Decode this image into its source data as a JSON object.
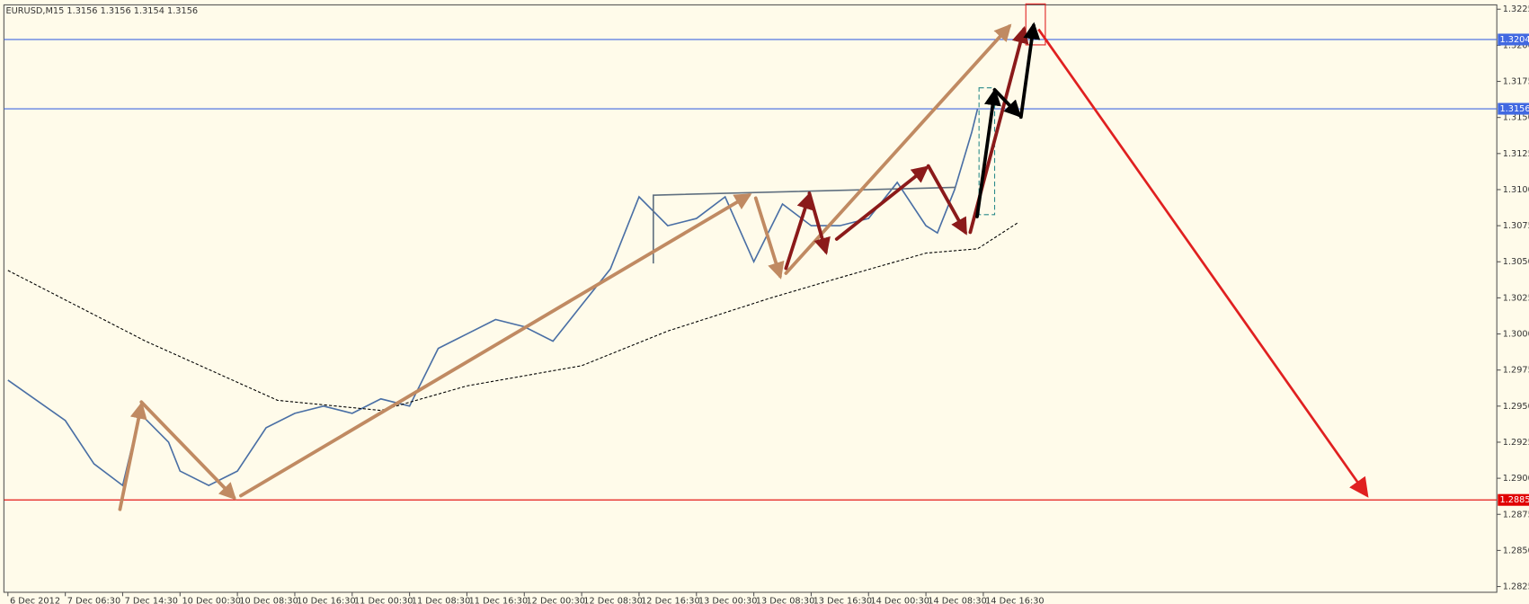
{
  "chart_data": {
    "type": "line",
    "title": "EURUSD,M15  1.3156 1.3156 1.3154 1.3156",
    "categories": [
      "6 Dec 2012",
      "7 Dec 06:30",
      "7 Dec 14:30",
      "10 Dec 00:30",
      "10 Dec 08:30",
      "10 Dec 16:30",
      "11 Dec 00:30",
      "11 Dec 08:30",
      "11 Dec 16:30",
      "12 Dec 00:30",
      "12 Dec 08:30",
      "12 Dec 16:30",
      "13 Dec 00:30",
      "13 Dec 08:30",
      "13 Dec 16:30",
      "14 Dec 00:30",
      "14 Dec 08:30",
      "14 Dec 16:30"
    ],
    "xlim": [
      -0.07,
      25.95
    ],
    "ylim": [
      1.2821,
      1.3228
    ],
    "yticks": [
      {
        "value": 1.3225,
        "label": "1.3225"
      },
      {
        "value": 1.32,
        "label": "1.3200"
      },
      {
        "value": 1.3175,
        "label": "1.3175"
      },
      {
        "value": 1.315,
        "label": "1.3150"
      },
      {
        "value": 1.3125,
        "label": "1.3125"
      },
      {
        "value": 1.31,
        "label": "1.3100"
      },
      {
        "value": 1.3075,
        "label": "1.3075"
      },
      {
        "value": 1.305,
        "label": "1.3050"
      },
      {
        "value": 1.3025,
        "label": "1.3025"
      },
      {
        "value": 1.3,
        "label": "1.3000"
      },
      {
        "value": 1.2975,
        "label": "1.2975"
      },
      {
        "value": 1.295,
        "label": "1.2950"
      },
      {
        "value": 1.2925,
        "label": "1.2925"
      },
      {
        "value": 1.29,
        "label": "1.2900"
      },
      {
        "value": 1.2875,
        "label": "1.2875"
      },
      {
        "value": 1.285,
        "label": "1.2850"
      },
      {
        "value": 1.2825,
        "label": "1.2825"
      }
    ],
    "series": [
      {
        "color": "#4a6fa5",
        "x": [
          0,
          1,
          1.5,
          2,
          2.3,
          2.8,
          3,
          3.5,
          4,
          4.5,
          5,
          5.5,
          6,
          6.5,
          7,
          7.5,
          8,
          8.5,
          9,
          9.5,
          10,
          10.5,
          11,
          11.5,
          12,
          12.5,
          13,
          13.5,
          14,
          14.5,
          15,
          15.5,
          16,
          16.2,
          16.5,
          16.8,
          16.9
        ],
        "values": [
          1.2968,
          1.294,
          1.291,
          1.2895,
          1.2945,
          1.2925,
          1.2905,
          1.2895,
          1.2905,
          1.2935,
          1.2945,
          1.295,
          1.2945,
          1.2955,
          1.295,
          1.299,
          1.3,
          1.301,
          1.3005,
          1.2995,
          1.302,
          1.3045,
          1.3095,
          1.3075,
          1.308,
          1.3095,
          1.305,
          1.309,
          1.3075,
          1.3075,
          1.308,
          1.3105,
          1.3075,
          1.307,
          1.31,
          1.314,
          1.3156
        ]
      },
      {
        "color": "#000000",
        "x": [
          0,
          2.4,
          4.7,
          6.5,
          8,
          10,
          11.5,
          13.3,
          14.5,
          16,
          16.9,
          17.6
        ],
        "values": [
          1.3044,
          1.2995,
          1.2954,
          1.2947,
          1.2964,
          1.2978,
          1.3002,
          1.3025,
          1.3039,
          1.3056,
          1.3059,
          1.3077
        ]
      }
    ],
    "hlines": [
      {
        "value": 1.3204,
        "label": "1.3204",
        "color": "#4169e1"
      },
      {
        "value": 1.3156,
        "label": "1.3156",
        "color": "#4169e1"
      },
      {
        "value": 1.2885,
        "label": "1.2885",
        "color": "#e00000"
      }
    ]
  }
}
